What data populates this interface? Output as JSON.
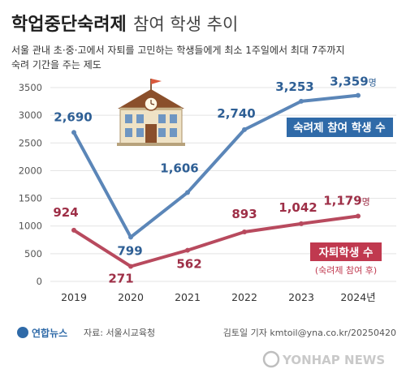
{
  "title": {
    "bold": "학업중단숙려제",
    "light": "참여 학생 추이"
  },
  "subtitle": [
    "서울 관내 초·중·고에서 자퇴를 고민하는 학생들에게 최소 1주일에서 최대 7주까지",
    "숙려 기간을 주는 제도"
  ],
  "source_text": "자료: 서울시교육청",
  "brand": "연합뉴스",
  "credit": "김토일 기자 kmtoil@yna.co.kr/20250420",
  "watermark": "YONHAP NEWS",
  "colors": {
    "blue": "#5b86b8",
    "red": "#b84a5e",
    "blue_label": "#2e5f95",
    "red_label": "#9e2f47",
    "grid": "#e3e3e3",
    "axis_text": "#555555"
  },
  "chart_data": {
    "type": "line",
    "categories": [
      "2019",
      "2020",
      "2021",
      "2022",
      "2023",
      "2024년"
    ],
    "ylim": [
      0,
      3500
    ],
    "yticks": [
      0,
      500,
      1000,
      1500,
      2000,
      2500,
      3000,
      3500
    ],
    "grid": true,
    "series": [
      {
        "name": "숙려제 참여 학생 수",
        "color": "blue",
        "values": [
          2690,
          799,
          1606,
          2740,
          3253,
          3359
        ],
        "labels": [
          "2,690",
          "799",
          "1,606",
          "2,740",
          "3,253",
          "3,359"
        ],
        "unit": "명"
      },
      {
        "name": "자퇴학생 수",
        "note": "(숙려제 참여 후)",
        "color": "red",
        "values": [
          924,
          271,
          562,
          893,
          1042,
          1179
        ],
        "labels": [
          "924",
          "271",
          "562",
          "893",
          "1,042",
          "1,179"
        ],
        "unit": "명"
      }
    ]
  }
}
